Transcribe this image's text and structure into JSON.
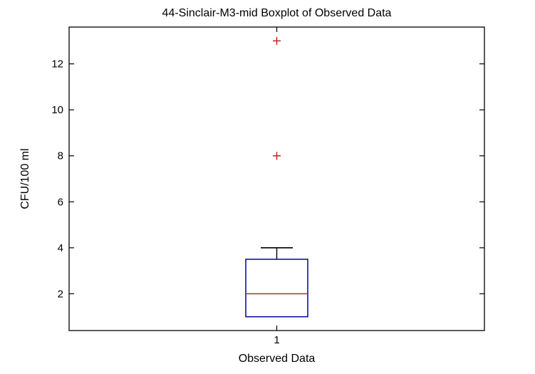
{
  "chart_data": {
    "type": "boxplot",
    "title": "44-Sinclair-M3-mid Boxplot of Observed Data",
    "xlabel": "Observed Data",
    "ylabel": "CFU/100 ml",
    "categories": [
      "1"
    ],
    "yticks": [
      2,
      4,
      6,
      8,
      10,
      12
    ],
    "ylim": [
      0.4,
      13.6
    ],
    "grid": false,
    "legend": "none",
    "series": [
      {
        "name": "Observed Data",
        "q1": 1,
        "median": 2,
        "q3": 3.5,
        "whisker_low": 1,
        "whisker_high": 4,
        "outliers": [
          8,
          13
        ]
      }
    ],
    "colors": {
      "box": "#0000a0",
      "median": "#a33434",
      "whisker": "#000000",
      "outlier": "#cc2222",
      "axis": "#000000",
      "background": "#ffffff"
    }
  }
}
